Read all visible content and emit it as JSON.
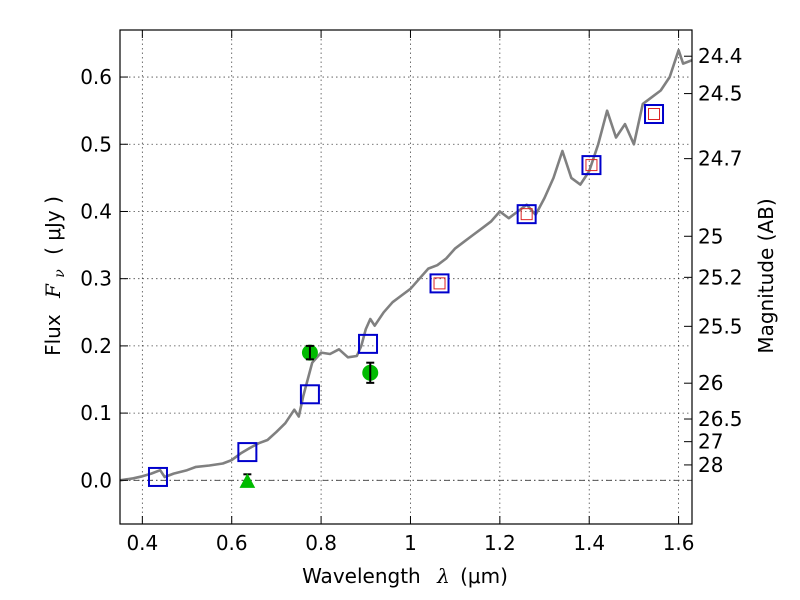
{
  "chart_data": {
    "type": "scatter",
    "xlabel_prefix": "Wavelength",
    "xlabel_symbol": "λ",
    "xlabel_unit": "(μm)",
    "ylabel_prefix": "Flux",
    "ylabel_symbol_main": "F",
    "ylabel_symbol_sub": "ν",
    "ylabel_unit": "( μJy )",
    "y2label": "Magnitude (AB)",
    "xlim": [
      0.35,
      1.63
    ],
    "ylim": [
      -0.065,
      0.67
    ],
    "grid": true,
    "x_ticks": [
      0.4,
      0.6,
      0.8,
      1.0,
      1.2,
      1.4,
      1.6
    ],
    "x_tick_labels": [
      "0.4",
      "0.6",
      "0.8",
      "1",
      "1.2",
      "1.4",
      "1.6"
    ],
    "y_ticks": [
      0.0,
      0.1,
      0.2,
      0.3,
      0.4,
      0.5,
      0.6
    ],
    "y_tick_labels": [
      "0.0",
      "0.1",
      "0.2",
      "0.3",
      "0.4",
      "0.5",
      "0.6"
    ],
    "mag_ticks": [
      {
        "label": "24.4",
        "flux": 0.631
      },
      {
        "label": "24.5",
        "flux": 0.5754
      },
      {
        "label": "24.7",
        "flux": 0.4786
      },
      {
        "label": "25",
        "flux": 0.3631
      },
      {
        "label": "25.2",
        "flux": 0.302
      },
      {
        "label": "25.5",
        "flux": 0.2291
      },
      {
        "label": "26",
        "flux": 0.1445
      },
      {
        "label": "26.5",
        "flux": 0.0912
      },
      {
        "label": "27",
        "flux": 0.0575
      },
      {
        "label": "28",
        "flux": 0.0229
      }
    ],
    "colors": {
      "model": "#808080",
      "square": "#0000cc",
      "inner_square": "#dd2222",
      "detection": "#00bb00",
      "errorbar": "#000000"
    },
    "model_spectrum": {
      "x": [
        0.35,
        0.38,
        0.4,
        0.42,
        0.44,
        0.45,
        0.47,
        0.5,
        0.52,
        0.55,
        0.58,
        0.6,
        0.62,
        0.64,
        0.66,
        0.68,
        0.7,
        0.72,
        0.74,
        0.75,
        0.76,
        0.77,
        0.78,
        0.8,
        0.82,
        0.84,
        0.86,
        0.88,
        0.89,
        0.9,
        0.91,
        0.92,
        0.94,
        0.96,
        0.98,
        1.0,
        1.02,
        1.04,
        1.06,
        1.08,
        1.1,
        1.12,
        1.14,
        1.16,
        1.18,
        1.2,
        1.22,
        1.24,
        1.26,
        1.28,
        1.3,
        1.32,
        1.34,
        1.36,
        1.38,
        1.4,
        1.42,
        1.44,
        1.46,
        1.48,
        1.5,
        1.52,
        1.54,
        1.56,
        1.58,
        1.6,
        1.61,
        1.63
      ],
      "y": [
        0.0,
        0.003,
        0.006,
        0.01,
        0.015,
        0.005,
        0.01,
        0.015,
        0.02,
        0.022,
        0.025,
        0.03,
        0.04,
        0.048,
        0.055,
        0.06,
        0.072,
        0.085,
        0.105,
        0.095,
        0.125,
        0.15,
        0.175,
        0.19,
        0.188,
        0.195,
        0.183,
        0.185,
        0.2,
        0.225,
        0.24,
        0.23,
        0.25,
        0.265,
        0.275,
        0.285,
        0.3,
        0.315,
        0.32,
        0.33,
        0.345,
        0.355,
        0.365,
        0.375,
        0.385,
        0.4,
        0.39,
        0.4,
        0.41,
        0.395,
        0.42,
        0.45,
        0.49,
        0.45,
        0.44,
        0.46,
        0.5,
        0.55,
        0.51,
        0.53,
        0.5,
        0.56,
        0.57,
        0.58,
        0.6,
        0.64,
        0.62,
        0.625
      ]
    },
    "photometry_squares": {
      "x": [
        0.435,
        0.635,
        0.775,
        0.905,
        1.065,
        1.26,
        1.405,
        1.545
      ],
      "y": [
        0.005,
        0.042,
        0.128,
        0.203,
        0.293,
        0.396,
        0.469,
        0.545
      ]
    },
    "inner_squares": {
      "x": [
        1.065,
        1.26,
        1.405,
        1.545
      ],
      "y": [
        0.293,
        0.396,
        0.469,
        0.545
      ]
    },
    "detections": {
      "x": [
        0.775,
        0.91
      ],
      "y": [
        0.19,
        0.16
      ],
      "err": [
        0.01,
        0.015
      ]
    },
    "upper_limit": {
      "x": 0.635,
      "y": 0.0
    }
  }
}
